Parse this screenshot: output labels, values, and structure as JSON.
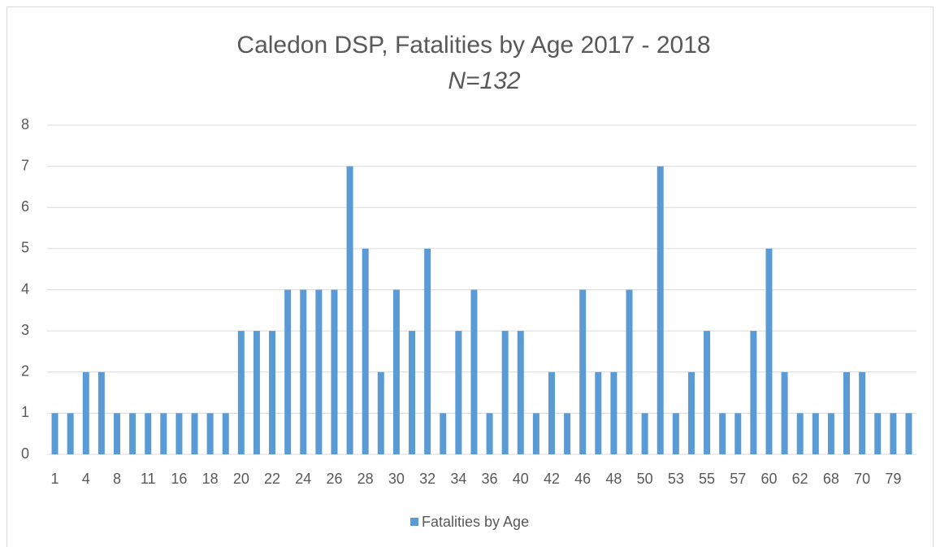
{
  "chart_data": {
    "type": "bar",
    "title": "Caledon DSP, Fatalities by Age 2017 - 2018",
    "subtitle": "N=132",
    "categories": [
      "1",
      null,
      "4",
      null,
      "8",
      null,
      "11",
      null,
      "16",
      null,
      "18",
      null,
      "20",
      null,
      "22",
      null,
      "24",
      null,
      "26",
      null,
      "28",
      null,
      "30",
      null,
      "32",
      null,
      "34",
      null,
      "36",
      null,
      "40",
      null,
      "42",
      null,
      "46",
      null,
      "48",
      null,
      "50",
      null,
      "53",
      null,
      "55",
      null,
      "57",
      null,
      "60",
      null,
      "62",
      null,
      "68",
      null,
      "70",
      null,
      "79",
      null
    ],
    "series": [
      {
        "name": "Fatalities by Age",
        "color": "#5b9bd5",
        "values": [
          1,
          1,
          2,
          2,
          1,
          1,
          1,
          1,
          1,
          1,
          1,
          1,
          3,
          3,
          3,
          4,
          4,
          4,
          4,
          7,
          5,
          2,
          4,
          3,
          5,
          1,
          3,
          4,
          1,
          3,
          3,
          1,
          2,
          1,
          4,
          2,
          2,
          4,
          1,
          7,
          1,
          2,
          3,
          1,
          1,
          3,
          5,
          2,
          1,
          1,
          1,
          2,
          2,
          1,
          1,
          1
        ]
      }
    ],
    "ylim": [
      0,
      8
    ],
    "yticks": [
      0,
      1,
      2,
      3,
      4,
      5,
      6,
      7,
      8
    ],
    "grid": true,
    "legend": "bottom"
  }
}
